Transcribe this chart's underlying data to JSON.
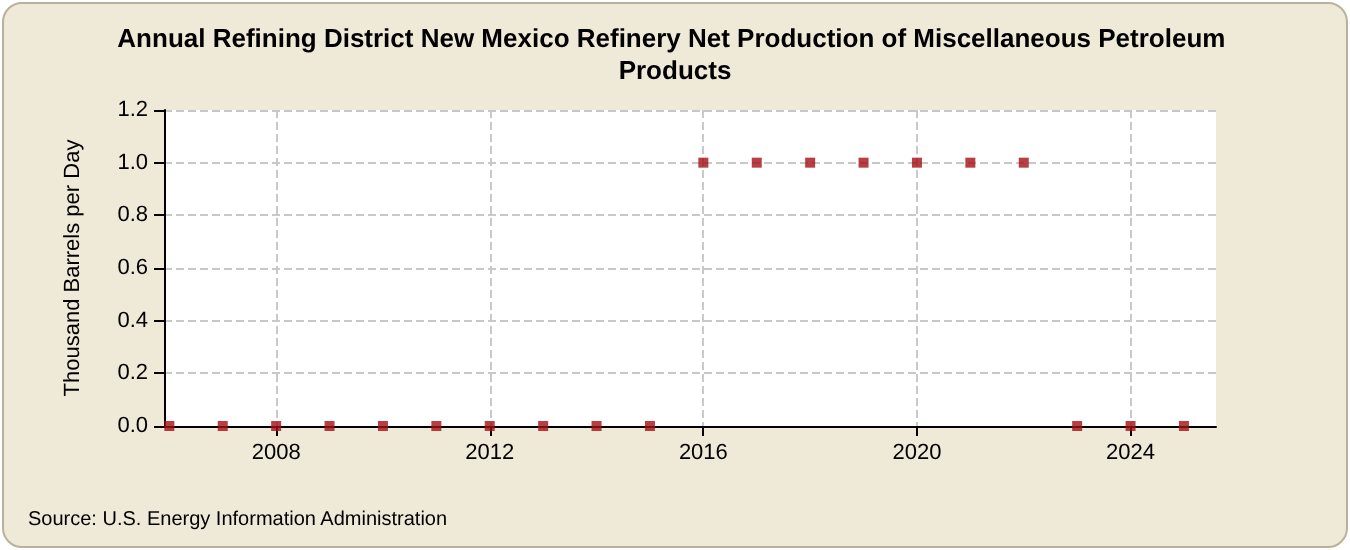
{
  "chart_data": {
    "type": "scatter",
    "title": "Annual Refining District New Mexico Refinery Net Production of Miscellaneous Petroleum Products",
    "ylabel": "Thousand Barrels per Day",
    "annotations": [
      "Source: U.S. Energy Information Administration"
    ],
    "x": [
      2006,
      2007,
      2008,
      2009,
      2010,
      2011,
      2012,
      2013,
      2014,
      2015,
      2016,
      2017,
      2018,
      2019,
      2020,
      2021,
      2022,
      2023,
      2024,
      2025
    ],
    "series": [
      {
        "color": "#a50f15",
        "values": [
          0,
          0,
          0,
          0,
          0,
          0,
          0,
          0,
          0,
          0,
          1.0,
          1.0,
          1.0,
          1.0,
          1.0,
          1.0,
          1.0,
          0,
          0,
          0
        ]
      }
    ],
    "xlim": [
      2005.9,
      2025.6
    ],
    "xticks": [
      2008,
      2012,
      2016,
      2020,
      2024
    ],
    "ylim": [
      0,
      1.2
    ],
    "yticks": [
      {
        "value": 0,
        "label": "0.0"
      },
      0.2,
      0.4,
      0.6,
      0.8,
      {
        "value": 1,
        "label": "1.0"
      },
      1.2
    ],
    "grid": true,
    "marker": "square"
  }
}
